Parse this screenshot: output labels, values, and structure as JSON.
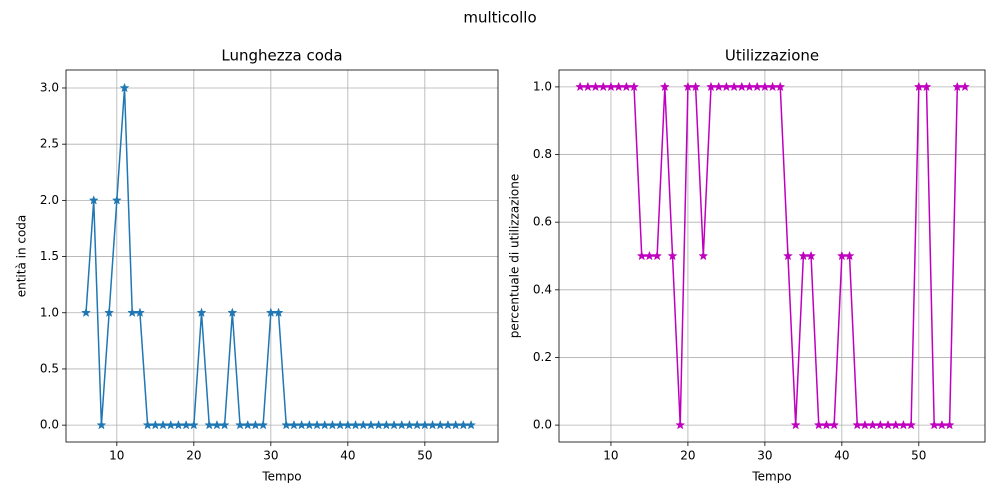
{
  "title": "multicollo",
  "chart_data": [
    {
      "type": "line",
      "title": "Lunghezza coda",
      "x_label": "Tempo",
      "y_label": "entità in coda",
      "marker": "star",
      "grid": true,
      "x": [
        6,
        7,
        8,
        9,
        10,
        11,
        12,
        13,
        14,
        15,
        16,
        17,
        18,
        19,
        20,
        21,
        22,
        23,
        24,
        25,
        26,
        27,
        28,
        29,
        30,
        31,
        32,
        33,
        34,
        35,
        36,
        37,
        38,
        39,
        40,
        41,
        42,
        43,
        44,
        45,
        46,
        47,
        48,
        49,
        50,
        51,
        52,
        53,
        54,
        55,
        56
      ],
      "series": [
        {
          "name": "coda",
          "color": "#1f77b4",
          "values": [
            1,
            2,
            0,
            1,
            2,
            3,
            1,
            1,
            0,
            0,
            0,
            0,
            0,
            0,
            0,
            1,
            0,
            0,
            0,
            1,
            0,
            0,
            0,
            0,
            1,
            1,
            0,
            0,
            0,
            0,
            0,
            0,
            0,
            0,
            0,
            0,
            0,
            0,
            0,
            0,
            0,
            0,
            0,
            0,
            0,
            0,
            0,
            0,
            0,
            0,
            0
          ]
        }
      ],
      "xlim": [
        3.4,
        59.5
      ],
      "ylim": [
        -0.15,
        3.16
      ],
      "xticks": [
        10,
        20,
        30,
        40,
        50
      ],
      "yticks": [
        {
          "value": 0,
          "label": "0.0"
        },
        {
          "value": 0.5,
          "label": "0.5"
        },
        {
          "value": 1,
          "label": "1.0"
        },
        {
          "value": 1.5,
          "label": "1.5"
        },
        {
          "value": 2,
          "label": "2.0"
        },
        {
          "value": 2.5,
          "label": "2.5"
        },
        {
          "value": 3,
          "label": "3.0"
        }
      ]
    },
    {
      "type": "line",
      "title": "Utilizzazione",
      "x_label": "Tempo",
      "y_label": "percentuale di utilizzazione",
      "marker": "star",
      "grid": true,
      "x": [
        6,
        7,
        8,
        9,
        10,
        11,
        12,
        13,
        14,
        15,
        16,
        17,
        18,
        19,
        20,
        21,
        22,
        23,
        24,
        25,
        26,
        27,
        28,
        29,
        30,
        31,
        32,
        33,
        34,
        35,
        36,
        37,
        38,
        39,
        40,
        41,
        42,
        43,
        44,
        45,
        46,
        47,
        48,
        49,
        50,
        51,
        52,
        53,
        54,
        55,
        56
      ],
      "series": [
        {
          "name": "utilizzazione",
          "color": "#bf00bf",
          "values": [
            1,
            1,
            1,
            1,
            1,
            1,
            1,
            1,
            0.5,
            0.5,
            0.5,
            1,
            0.5,
            0,
            1,
            1,
            0.5,
            1,
            1,
            1,
            1,
            1,
            1,
            1,
            1,
            1,
            1,
            0.5,
            0,
            0.5,
            0.5,
            0,
            0,
            0,
            0.5,
            0.5,
            0,
            0,
            0,
            0,
            0,
            0,
            0,
            0,
            1,
            1,
            0,
            0,
            0,
            1,
            1
          ]
        }
      ],
      "xlim": [
        3.25,
        58.6
      ],
      "ylim": [
        -0.05,
        1.05
      ],
      "xticks": [
        10,
        20,
        30,
        40,
        50
      ],
      "yticks": [
        {
          "value": 0,
          "label": "0.0"
        },
        {
          "value": 0.2,
          "label": "0.2"
        },
        {
          "value": 0.4,
          "label": "0.4"
        },
        {
          "value": 0.6,
          "label": "0.6"
        },
        {
          "value": 0.8,
          "label": "0.8"
        },
        {
          "value": 1,
          "label": "1.0"
        }
      ]
    }
  ]
}
